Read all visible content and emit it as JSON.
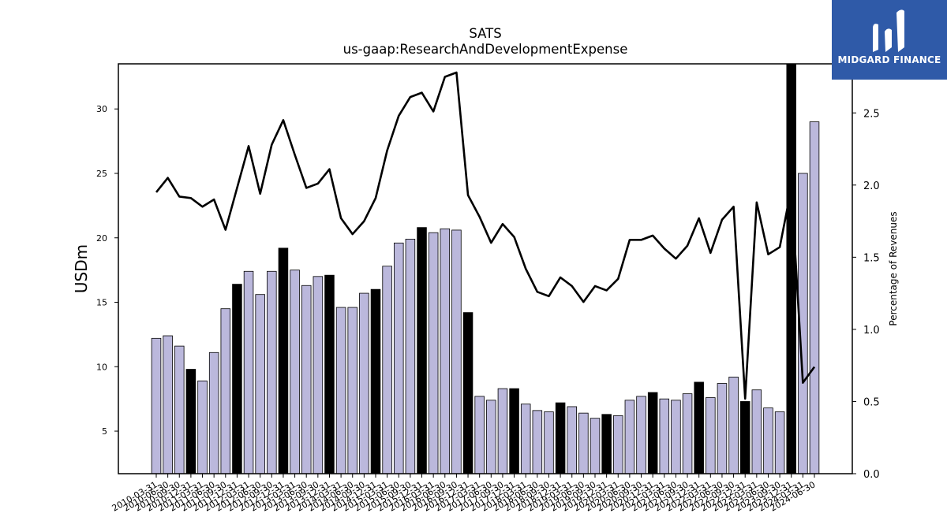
{
  "chart_data": {
    "type": "bar",
    "title": "SATS",
    "subtitle": "us-gaap:ResearchAndDevelopmentExpense",
    "ylabel": "USDm",
    "y2label": "Percentage of Revenues",
    "ylim": [
      1.7,
      33.5
    ],
    "y2lim": [
      0,
      2.84
    ],
    "yticks": [
      5,
      10,
      15,
      20,
      25,
      30
    ],
    "y2ticks": [
      "0.0",
      "0.5",
      "1.0",
      "1.5",
      "2.0",
      "2.5"
    ],
    "categories": [
      "2010-03-31",
      "2010-06-30",
      "2010-09-30",
      "2010-12-31",
      "2011-03-31",
      "2011-06-30",
      "2011-09-30",
      "2011-12-31",
      "2012-03-31",
      "2012-06-30",
      "2012-09-30",
      "2012-12-31",
      "2013-03-31",
      "2013-06-30",
      "2013-09-30",
      "2013-12-31",
      "2014-03-31",
      "2014-06-30",
      "2014-09-30",
      "2014-12-31",
      "2015-03-31",
      "2015-06-30",
      "2015-09-30",
      "2015-12-31",
      "2016-03-31",
      "2016-06-30",
      "2016-09-30",
      "2016-12-31",
      "2017-03-31",
      "2017-06-30",
      "2017-09-30",
      "2017-12-31",
      "2018-03-31",
      "2018-06-30",
      "2018-09-30",
      "2018-12-31",
      "2019-03-31",
      "2019-06-30",
      "2019-09-30",
      "2019-12-31",
      "2020-03-31",
      "2020-06-30",
      "2020-09-30",
      "2020-12-31",
      "2021-03-31",
      "2021-06-30",
      "2021-09-30",
      "2021-12-31",
      "2022-03-31",
      "2022-06-30",
      "2022-09-30",
      "2022-12-31",
      "2023-03-31",
      "2023-06-30",
      "2023-09-30",
      "2023-12-31",
      "2024-03-31",
      "2024-06-30"
    ],
    "series": [
      {
        "kind": "bar",
        "values": [
          12.2,
          12.4,
          11.6,
          9.8,
          8.9,
          11.1,
          14.5,
          16.4,
          17.4,
          15.6,
          17.4,
          19.2,
          17.5,
          16.3,
          17.0,
          17.1,
          14.6,
          14.6,
          15.7,
          16.0,
          17.8,
          19.6,
          19.9,
          20.8,
          20.4,
          20.7,
          20.6,
          14.2,
          7.7,
          7.4,
          8.3,
          8.3,
          7.1,
          6.6,
          6.5,
          7.2,
          6.9,
          6.4,
          6.0,
          6.3,
          6.2,
          7.4,
          7.7,
          8.0,
          7.5,
          7.4,
          7.9,
          8.8,
          7.6,
          8.7,
          9.2,
          7.3,
          8.2,
          6.8,
          6.5,
          33.5,
          25.0,
          29.0
        ],
        "highlight": [
          false,
          false,
          false,
          true,
          false,
          false,
          false,
          true,
          false,
          false,
          false,
          true,
          false,
          false,
          false,
          true,
          false,
          false,
          false,
          true,
          false,
          false,
          false,
          true,
          false,
          false,
          false,
          true,
          false,
          false,
          false,
          true,
          false,
          false,
          false,
          true,
          false,
          false,
          false,
          true,
          false,
          false,
          false,
          true,
          false,
          false,
          false,
          true,
          false,
          false,
          false,
          true,
          false,
          false,
          false,
          true,
          false,
          false
        ],
        "color": "#bbb8dc",
        "highlight_color": "#000000"
      },
      {
        "kind": "line",
        "axis": "right",
        "values": [
          1.95,
          2.05,
          1.92,
          1.91,
          1.85,
          1.9,
          1.69,
          1.98,
          2.27,
          1.94,
          2.28,
          2.45,
          2.21,
          1.98,
          2.01,
          2.11,
          1.77,
          1.66,
          1.75,
          1.91,
          2.24,
          2.48,
          2.61,
          2.64,
          2.51,
          2.75,
          2.78,
          1.93,
          1.78,
          1.6,
          1.73,
          1.64,
          1.42,
          1.26,
          1.23,
          1.36,
          1.3,
          1.19,
          1.3,
          1.27,
          1.35,
          1.62,
          1.62,
          1.65,
          1.56,
          1.49,
          1.58,
          1.77,
          1.53,
          1.76,
          1.85,
          0.52,
          1.88,
          1.52,
          1.57,
          1.98,
          0.63,
          0.74
        ],
        "color": "#000000"
      }
    ],
    "grid": false
  },
  "logo": {
    "text": "MIDGARD FINANCE",
    "bg": "#2f5aa8",
    "fg": "#ffffff"
  }
}
